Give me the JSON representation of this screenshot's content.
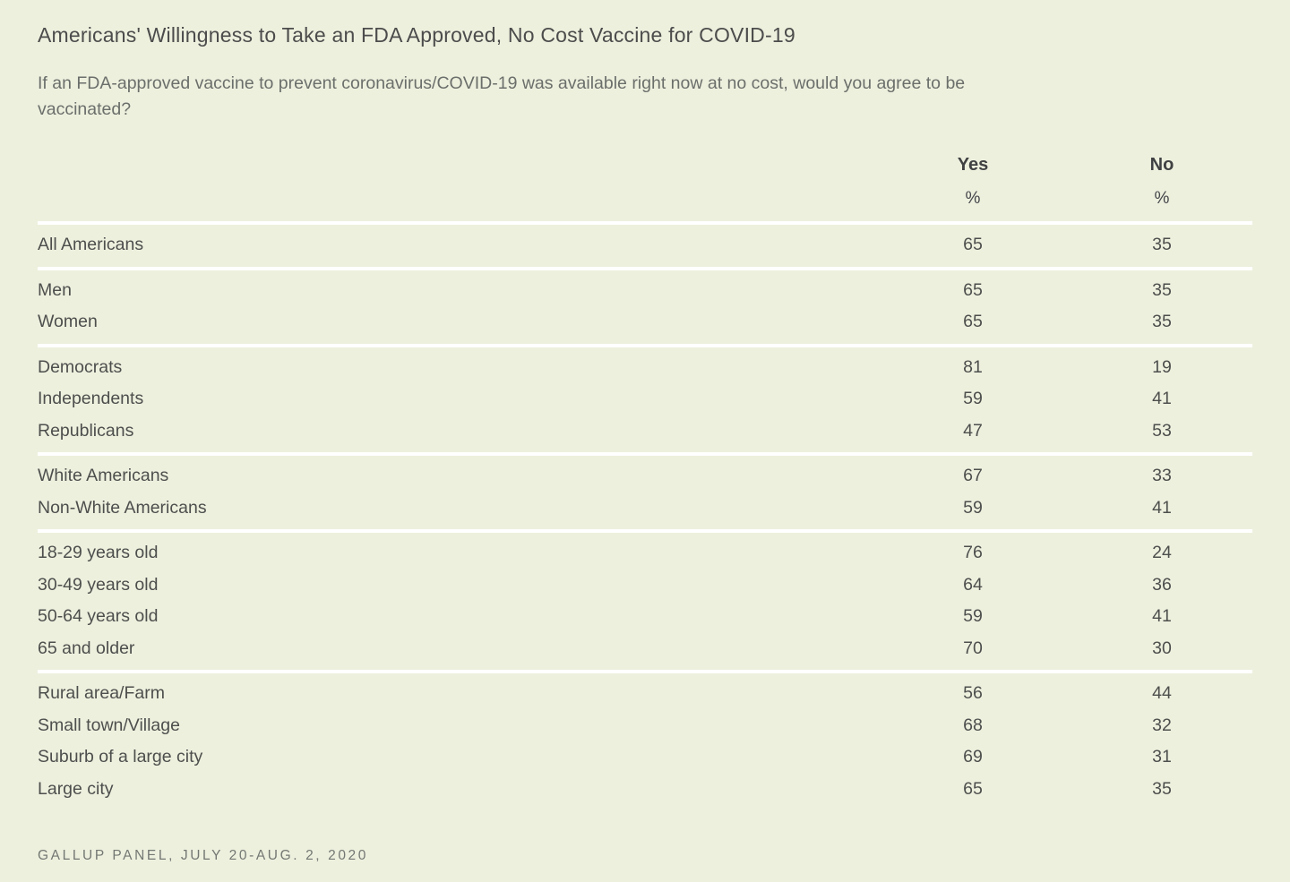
{
  "header": {
    "title": "Americans' Willingness to Take an FDA Approved, No Cost Vaccine for COVID-19",
    "subtitle": "If an FDA-approved vaccine to prevent coronavirus/COVID-19 was available right now at no cost, would you agree to be vaccinated?"
  },
  "table": {
    "columns": [
      {
        "label": "Yes",
        "unit": "%"
      },
      {
        "label": "No",
        "unit": "%"
      }
    ],
    "groups": [
      [
        {
          "label": "All Americans",
          "yes": 65,
          "no": 35
        }
      ],
      [
        {
          "label": "Men",
          "yes": 65,
          "no": 35
        },
        {
          "label": "Women",
          "yes": 65,
          "no": 35
        }
      ],
      [
        {
          "label": "Democrats",
          "yes": 81,
          "no": 19
        },
        {
          "label": "Independents",
          "yes": 59,
          "no": 41
        },
        {
          "label": "Republicans",
          "yes": 47,
          "no": 53
        }
      ],
      [
        {
          "label": "White Americans",
          "yes": 67,
          "no": 33
        },
        {
          "label": "Non-White Americans",
          "yes": 59,
          "no": 41
        }
      ],
      [
        {
          "label": "18-29 years old",
          "yes": 76,
          "no": 24
        },
        {
          "label": "30-49 years old",
          "yes": 64,
          "no": 36
        },
        {
          "label": "50-64 years old",
          "yes": 59,
          "no": 41
        },
        {
          "label": "65 and older",
          "yes": 70,
          "no": 30
        }
      ],
      [
        {
          "label": "Rural area/Farm",
          "yes": 56,
          "no": 44
        },
        {
          "label": "Small town/Village",
          "yes": 68,
          "no": 32
        },
        {
          "label": "Suburb of a large city",
          "yes": 69,
          "no": 31
        },
        {
          "label": "Large city",
          "yes": 65,
          "no": 35
        }
      ]
    ]
  },
  "footer": {
    "source": "GALLUP PANEL, JULY 20-AUG. 2, 2020"
  },
  "colors": {
    "background": "#edf0dd",
    "separator": "#ffffff",
    "title_text": "#4c4c4c",
    "subtitle_text": "#6b6f6b",
    "row_text": "#4d4f4d",
    "header_text": "#3f4142",
    "source_text": "#737873"
  },
  "chart_data": {
    "type": "table",
    "title": "Americans' Willingness to Take an FDA Approved, No Cost Vaccine for COVID-19",
    "subtitle": "If an FDA-approved vaccine to prevent coronavirus/COVID-19 was available right now at no cost, would you agree to be vaccinated?",
    "columns": [
      "Yes %",
      "No %"
    ],
    "categories": [
      "All Americans",
      "Men",
      "Women",
      "Democrats",
      "Independents",
      "Republicans",
      "White Americans",
      "Non-White Americans",
      "18-29 years old",
      "30-49 years old",
      "50-64 years old",
      "65 and older",
      "Rural area/Farm",
      "Small town/Village",
      "Suburb of a large city",
      "Large city"
    ],
    "series": [
      {
        "name": "Yes",
        "values": [
          65,
          65,
          65,
          81,
          59,
          47,
          67,
          59,
          76,
          64,
          59,
          70,
          56,
          68,
          69,
          65
        ]
      },
      {
        "name": "No",
        "values": [
          35,
          35,
          35,
          19,
          41,
          53,
          33,
          41,
          24,
          36,
          41,
          30,
          44,
          32,
          31,
          35
        ]
      }
    ],
    "value_range": [
      0,
      100
    ],
    "grid": false,
    "legend_position": "column-headers",
    "source": "GALLUP PANEL, JULY 20-AUG. 2, 2020"
  }
}
